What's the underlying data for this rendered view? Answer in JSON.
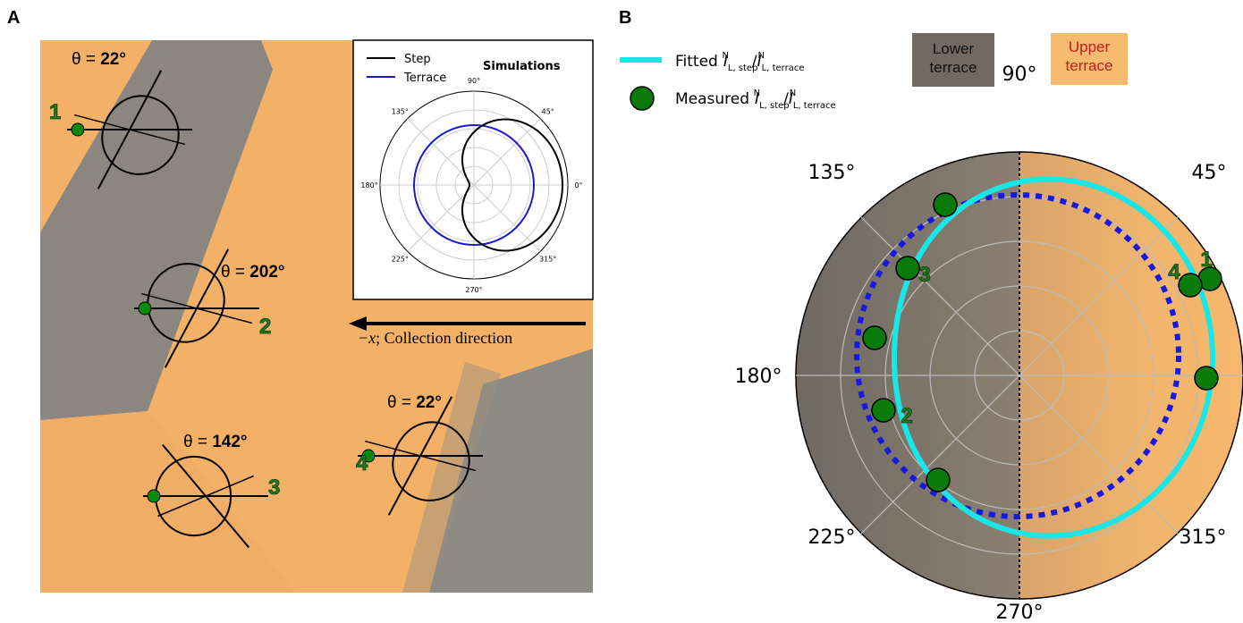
{
  "panel_a": {
    "label": "A",
    "annotations": [
      {
        "theta": "θ = ",
        "angle": "22°",
        "site": "1"
      },
      {
        "theta": "θ = ",
        "angle": "202°",
        "site": "2"
      },
      {
        "theta": "θ = ",
        "angle": "142°",
        "site": "3"
      },
      {
        "theta": "θ = ",
        "angle": "22°",
        "site": "4"
      }
    ],
    "inset": {
      "legend": [
        "Step",
        "Terrace"
      ],
      "title": "Simulations",
      "angle_labels": [
        "0°",
        "45°",
        "90°",
        "135°",
        "180°",
        "225°",
        "270°",
        "315°"
      ]
    },
    "arrow_variable": "−x",
    "arrow_text": "; Collection direction"
  },
  "panel_b": {
    "label": "B",
    "legend": {
      "fitted": "Fitted",
      "measured": "Measured",
      "ratio": {
        "symbol": "I",
        "sup": "N",
        "sub_step": "L, step",
        "slash": "/",
        "sub_terrace": "L, terrace"
      }
    },
    "regions": {
      "lower": [
        "Lower",
        "terrace"
      ],
      "upper": [
        "Upper",
        "terrace"
      ]
    },
    "angle_labels": [
      "45°",
      "90°",
      "135°",
      "180°",
      "225°",
      "270°",
      "315°"
    ],
    "point_labels": [
      "1",
      "4",
      "3",
      "2"
    ]
  }
}
